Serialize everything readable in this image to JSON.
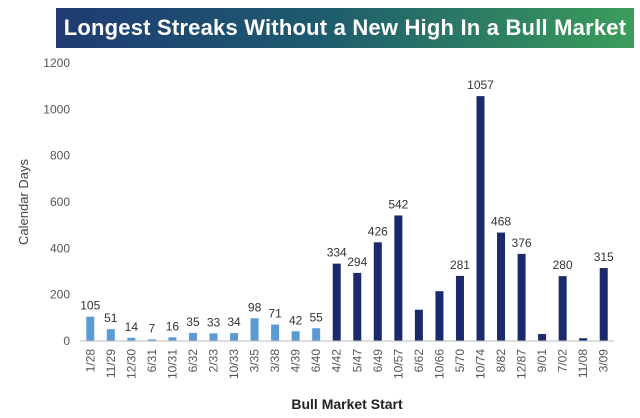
{
  "chart_data": {
    "type": "bar",
    "title": "Longest Streaks Without a New High In a Bull Market",
    "xlabel": "Bull Market Start",
    "ylabel": "Calendar Days",
    "ylim": [
      0,
      1200
    ],
    "yticks": [
      0,
      200,
      400,
      600,
      800,
      1000,
      1200
    ],
    "grid": false,
    "categories": [
      "1/28",
      "11/29",
      "12/30",
      "6/31",
      "10/31",
      "6/32",
      "2/33",
      "10/33",
      "3/35",
      "3/38",
      "4/39",
      "6/40",
      "4/42",
      "5/47",
      "6/49",
      "10/57",
      "6/62",
      "10/66",
      "5/70",
      "10/74",
      "8/82",
      "12/87",
      "9/01",
      "7/02",
      "11/08",
      "3/09"
    ],
    "values": [
      105,
      51,
      14,
      7,
      16,
      35,
      33,
      34,
      98,
      71,
      42,
      55,
      334,
      294,
      426,
      542,
      135,
      215,
      281,
      1057,
      468,
      376,
      30,
      280,
      12,
      315
    ],
    "data_labels": [
      "105",
      "51",
      "14",
      "7",
      "16",
      "35",
      "33",
      "34",
      "98",
      "71",
      "42",
      "55",
      "334",
      "294",
      "426",
      "542",
      "",
      "",
      "281",
      "1057",
      "468",
      "376",
      "",
      "280",
      "",
      "315"
    ],
    "bar_colors": [
      "#5b9bd5",
      "#5b9bd5",
      "#5b9bd5",
      "#5b9bd5",
      "#5b9bd5",
      "#5b9bd5",
      "#5b9bd5",
      "#5b9bd5",
      "#5b9bd5",
      "#5b9bd5",
      "#5b9bd5",
      "#5b9bd5",
      "#1a2a6c",
      "#1a2a6c",
      "#1a2a6c",
      "#1a2a6c",
      "#1a2a6c",
      "#1a2a6c",
      "#1a2a6c",
      "#1a2a6c",
      "#1a2a6c",
      "#1a2a6c",
      "#1a2a6c",
      "#1a2a6c",
      "#1a2a6c",
      "#1a2a6c"
    ]
  }
}
